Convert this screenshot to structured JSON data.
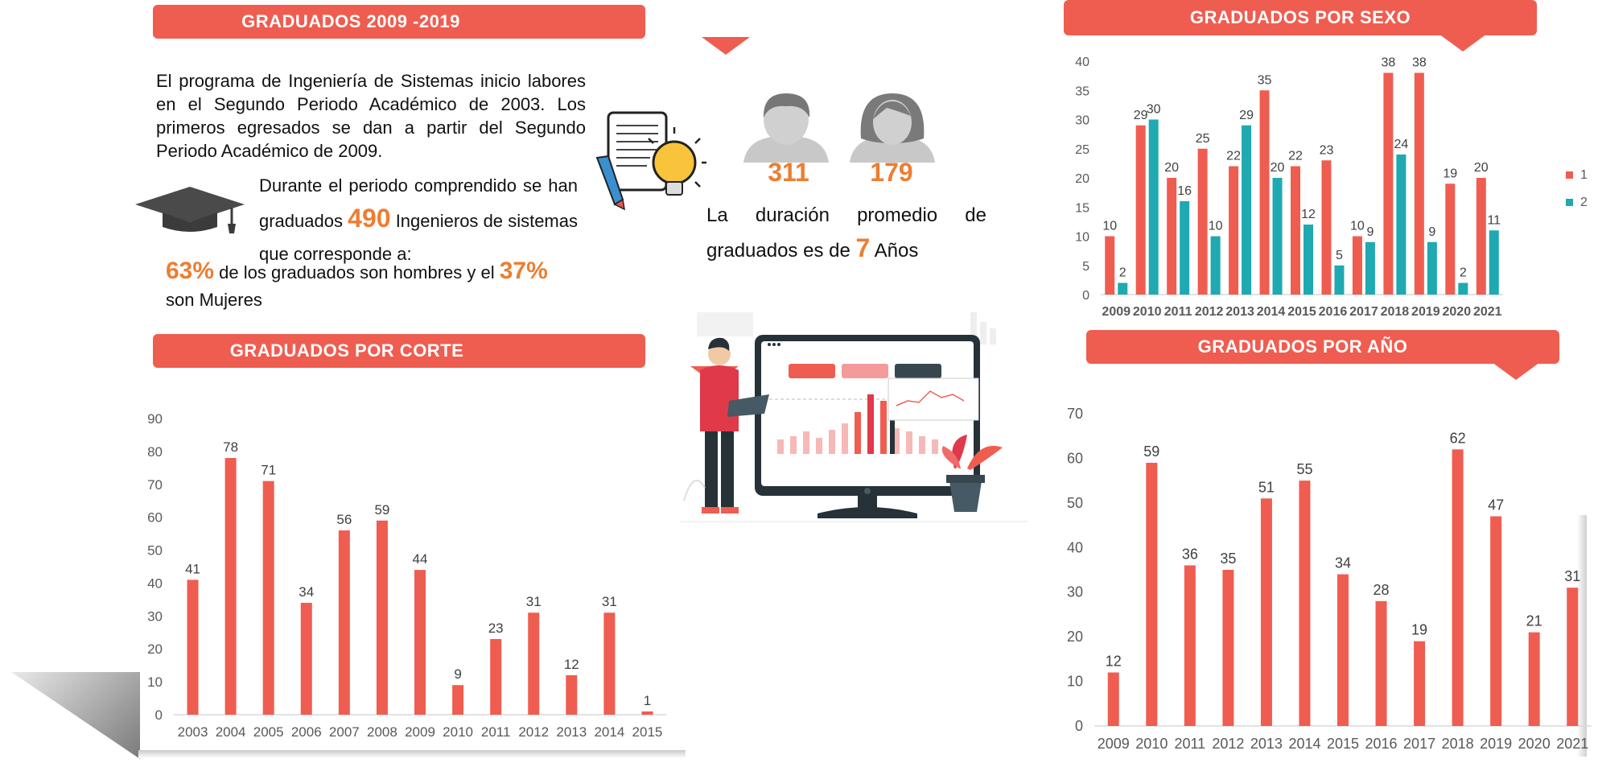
{
  "banners": {
    "title": "GRADUADOS  2009 -2019",
    "sexo": "GRADUADOS  POR SEXO",
    "corte": "GRADUADOS  POR CORTE",
    "anio": "GRADUADOS  POR AÑO"
  },
  "intro": {
    "p1": "El programa de Ingeniería de Sistemas inicio labores en el Segundo Periodo Académico de 2003. Los primeros egresados se dan a partir del Segundo Periodo Académico de 2009.",
    "p2_a": "Durante el periodo comprendido se han graduados",
    "p2_num": "490",
    "p2_b": "Ingenieros de sistemas que corresponde a:",
    "pct_men": "63%",
    "p3_a": "de los graduados son hombres y el",
    "pct_women": "37%",
    "p3_b": "son Mujeres"
  },
  "counts": {
    "men": "311",
    "women": "179"
  },
  "duration": {
    "text_a": "La duración promedio de graduados es de",
    "years": "7",
    "text_b": "Años"
  },
  "colors": {
    "accent": "#ef5d50",
    "teal": "#1fa9b1",
    "orange": "#ee7d31",
    "grey": "#9a9a9a"
  },
  "icons": [
    "graduation-cap-icon",
    "idea-paper-icon",
    "male-avatar-icon",
    "female-avatar-icon",
    "dashboard-illustration"
  ],
  "chart_data": [
    {
      "id": "sexo",
      "type": "bar",
      "categories": [
        "2009",
        "2010",
        "2011",
        "2012",
        "2013",
        "2014",
        "2015",
        "2016",
        "2017",
        "2018",
        "2019",
        "2020",
        "2021"
      ],
      "series": [
        {
          "name": "1",
          "values": [
            10,
            29,
            20,
            25,
            22,
            35,
            22,
            23,
            10,
            38,
            38,
            19,
            20
          ]
        },
        {
          "name": "2",
          "values": [
            2,
            30,
            16,
            10,
            29,
            20,
            12,
            5,
            9,
            24,
            9,
            2,
            11
          ]
        }
      ],
      "ylim": [
        0,
        40
      ],
      "yticks": [
        0,
        5,
        10,
        15,
        20,
        25,
        30,
        35,
        40
      ],
      "legend": "right",
      "grid": false
    },
    {
      "id": "corte",
      "type": "bar",
      "categories": [
        "2003",
        "2004",
        "2005",
        "2006",
        "2007",
        "2008",
        "2009",
        "2010",
        "2011",
        "2012",
        "2013",
        "2014",
        "2015"
      ],
      "values": [
        41,
        78,
        71,
        34,
        56,
        59,
        44,
        9,
        23,
        31,
        12,
        31,
        1
      ],
      "ylim": [
        0,
        90
      ],
      "yticks": [
        0,
        10,
        20,
        30,
        40,
        50,
        60,
        70,
        80,
        90
      ],
      "grid": false
    },
    {
      "id": "anio",
      "type": "bar",
      "categories": [
        "2009",
        "2010",
        "2011",
        "2012",
        "2013",
        "2014",
        "2015",
        "2016",
        "2017",
        "2018",
        "2019",
        "2020",
        "2021"
      ],
      "values": [
        12,
        59,
        36,
        35,
        51,
        55,
        34,
        28,
        19,
        62,
        47,
        21,
        31
      ],
      "ylim": [
        0,
        70
      ],
      "yticks": [
        0,
        10,
        20,
        30,
        40,
        50,
        60,
        70
      ],
      "grid": false
    }
  ]
}
